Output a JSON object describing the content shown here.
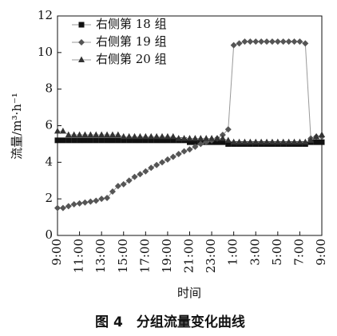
{
  "chart_data": {
    "type": "line",
    "caption": "图 4　分组流量变化曲线",
    "xlabel": "时间",
    "ylabel": "流量/m³·h⁻¹",
    "categories": [
      "9:00",
      null,
      null,
      null,
      "11:00",
      null,
      null,
      null,
      "13:00",
      null,
      null,
      null,
      "15:00",
      null,
      null,
      null,
      "17:00",
      null,
      null,
      null,
      "19:00",
      null,
      null,
      null,
      "21:00",
      null,
      null,
      null,
      "23:00",
      null,
      null,
      null,
      "1:00",
      null,
      null,
      null,
      "3:00",
      null,
      null,
      null,
      "5:00",
      null,
      null,
      null,
      "7:00",
      null,
      null,
      null,
      "9:00"
    ],
    "series": [
      {
        "name": "右侧第 18 组",
        "color": "#111111",
        "marker": "square",
        "values": [
          5.2,
          5.2,
          5.2,
          5.2,
          5.2,
          5.2,
          5.2,
          5.2,
          5.2,
          5.2,
          5.2,
          5.2,
          5.2,
          5.2,
          5.2,
          5.2,
          5.2,
          5.2,
          5.2,
          5.2,
          5.2,
          5.2,
          5.2,
          5.2,
          5.1,
          5.1,
          5.1,
          5.1,
          5.1,
          5.1,
          5.1,
          5.0,
          5.0,
          5.0,
          5.0,
          5.0,
          5.0,
          5.0,
          5.0,
          5.0,
          5.0,
          5.0,
          5.0,
          5.0,
          5.0,
          5.0,
          5.1,
          5.1,
          5.1
        ]
      },
      {
        "name": "右侧第 19 组",
        "color": "#555555",
        "marker": "diamond",
        "values": [
          1.5,
          1.5,
          1.6,
          1.7,
          1.75,
          1.8,
          1.85,
          1.9,
          2.0,
          2.05,
          2.4,
          2.7,
          2.8,
          3.0,
          3.2,
          3.35,
          3.5,
          3.7,
          3.85,
          4.0,
          4.15,
          4.3,
          4.45,
          4.6,
          4.7,
          4.85,
          5.0,
          5.1,
          5.2,
          5.3,
          5.5,
          5.8,
          10.4,
          10.5,
          10.6,
          10.6,
          10.6,
          10.6,
          10.6,
          10.6,
          10.6,
          10.6,
          10.6,
          10.6,
          10.6,
          10.5,
          5.3,
          5.4,
          5.4
        ]
      },
      {
        "name": "右侧第 20 组",
        "color": "#333333",
        "marker": "triangle",
        "values": [
          5.7,
          5.7,
          5.5,
          5.5,
          5.5,
          5.5,
          5.5,
          5.5,
          5.5,
          5.5,
          5.5,
          5.5,
          5.4,
          5.4,
          5.4,
          5.4,
          5.4,
          5.4,
          5.4,
          5.4,
          5.4,
          5.4,
          5.3,
          5.3,
          5.3,
          5.3,
          5.3,
          5.3,
          5.3,
          5.3,
          5.3,
          5.2,
          5.1,
          5.1,
          5.1,
          5.1,
          5.1,
          5.1,
          5.1,
          5.1,
          5.1,
          5.1,
          5.1,
          5.1,
          5.1,
          5.1,
          5.2,
          5.4,
          5.5
        ]
      }
    ],
    "ylim": [
      0,
      12
    ],
    "yticks": [
      0,
      2,
      4,
      6,
      8,
      10,
      12
    ],
    "line_color": "#999999",
    "legend": "upper-left"
  }
}
